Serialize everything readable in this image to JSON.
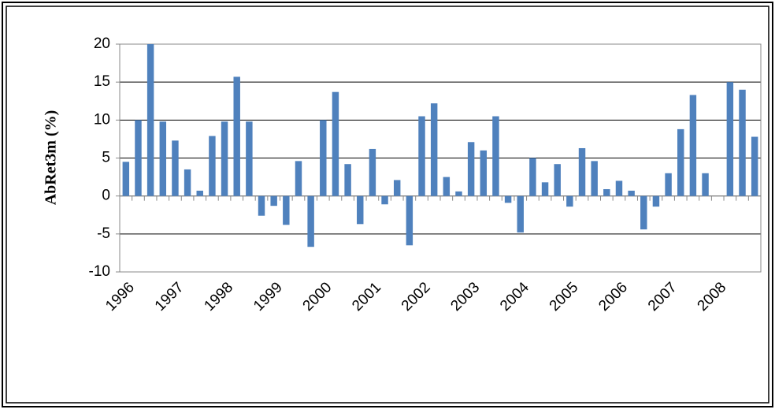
{
  "chart_data": {
    "type": "bar",
    "y_label": "AbRet3m (%)",
    "categories": [
      "1996",
      null,
      null,
      null,
      "1997",
      null,
      null,
      null,
      "1998",
      null,
      null,
      null,
      "1999",
      null,
      null,
      null,
      "2000",
      null,
      null,
      null,
      "2001",
      null,
      null,
      null,
      "2002",
      null,
      null,
      null,
      "2003",
      null,
      null,
      null,
      "2004",
      null,
      null,
      null,
      "2005",
      null,
      null,
      null,
      "2006",
      null,
      null,
      null,
      "2007",
      null,
      null,
      null,
      "2008",
      null,
      null,
      null
    ],
    "values": [
      4.5,
      10,
      20,
      9.8,
      7.3,
      3.5,
      0.7,
      7.9,
      9.8,
      15.7,
      9.8,
      -2.6,
      -1.3,
      -3.8,
      4.6,
      -6.7,
      10,
      13.7,
      4.2,
      -3.7,
      6.2,
      -1.1,
      2.1,
      -6.5,
      10.5,
      12.2,
      2.5,
      0.6,
      7.1,
      6,
      10.5,
      -0.9,
      -4.8,
      5,
      1.8,
      4.2,
      -1.4,
      6.3,
      4.6,
      0.9,
      2,
      0.7,
      -4.4,
      -1.4,
      3,
      8.8,
      13.3,
      3,
      0,
      15,
      14,
      7.8
    ],
    "color": "#4f81bd",
    "ylim": [
      -10,
      20
    ],
    "yticks": [
      -10,
      -5,
      0,
      5,
      10,
      15,
      20
    ],
    "grid": true
  }
}
